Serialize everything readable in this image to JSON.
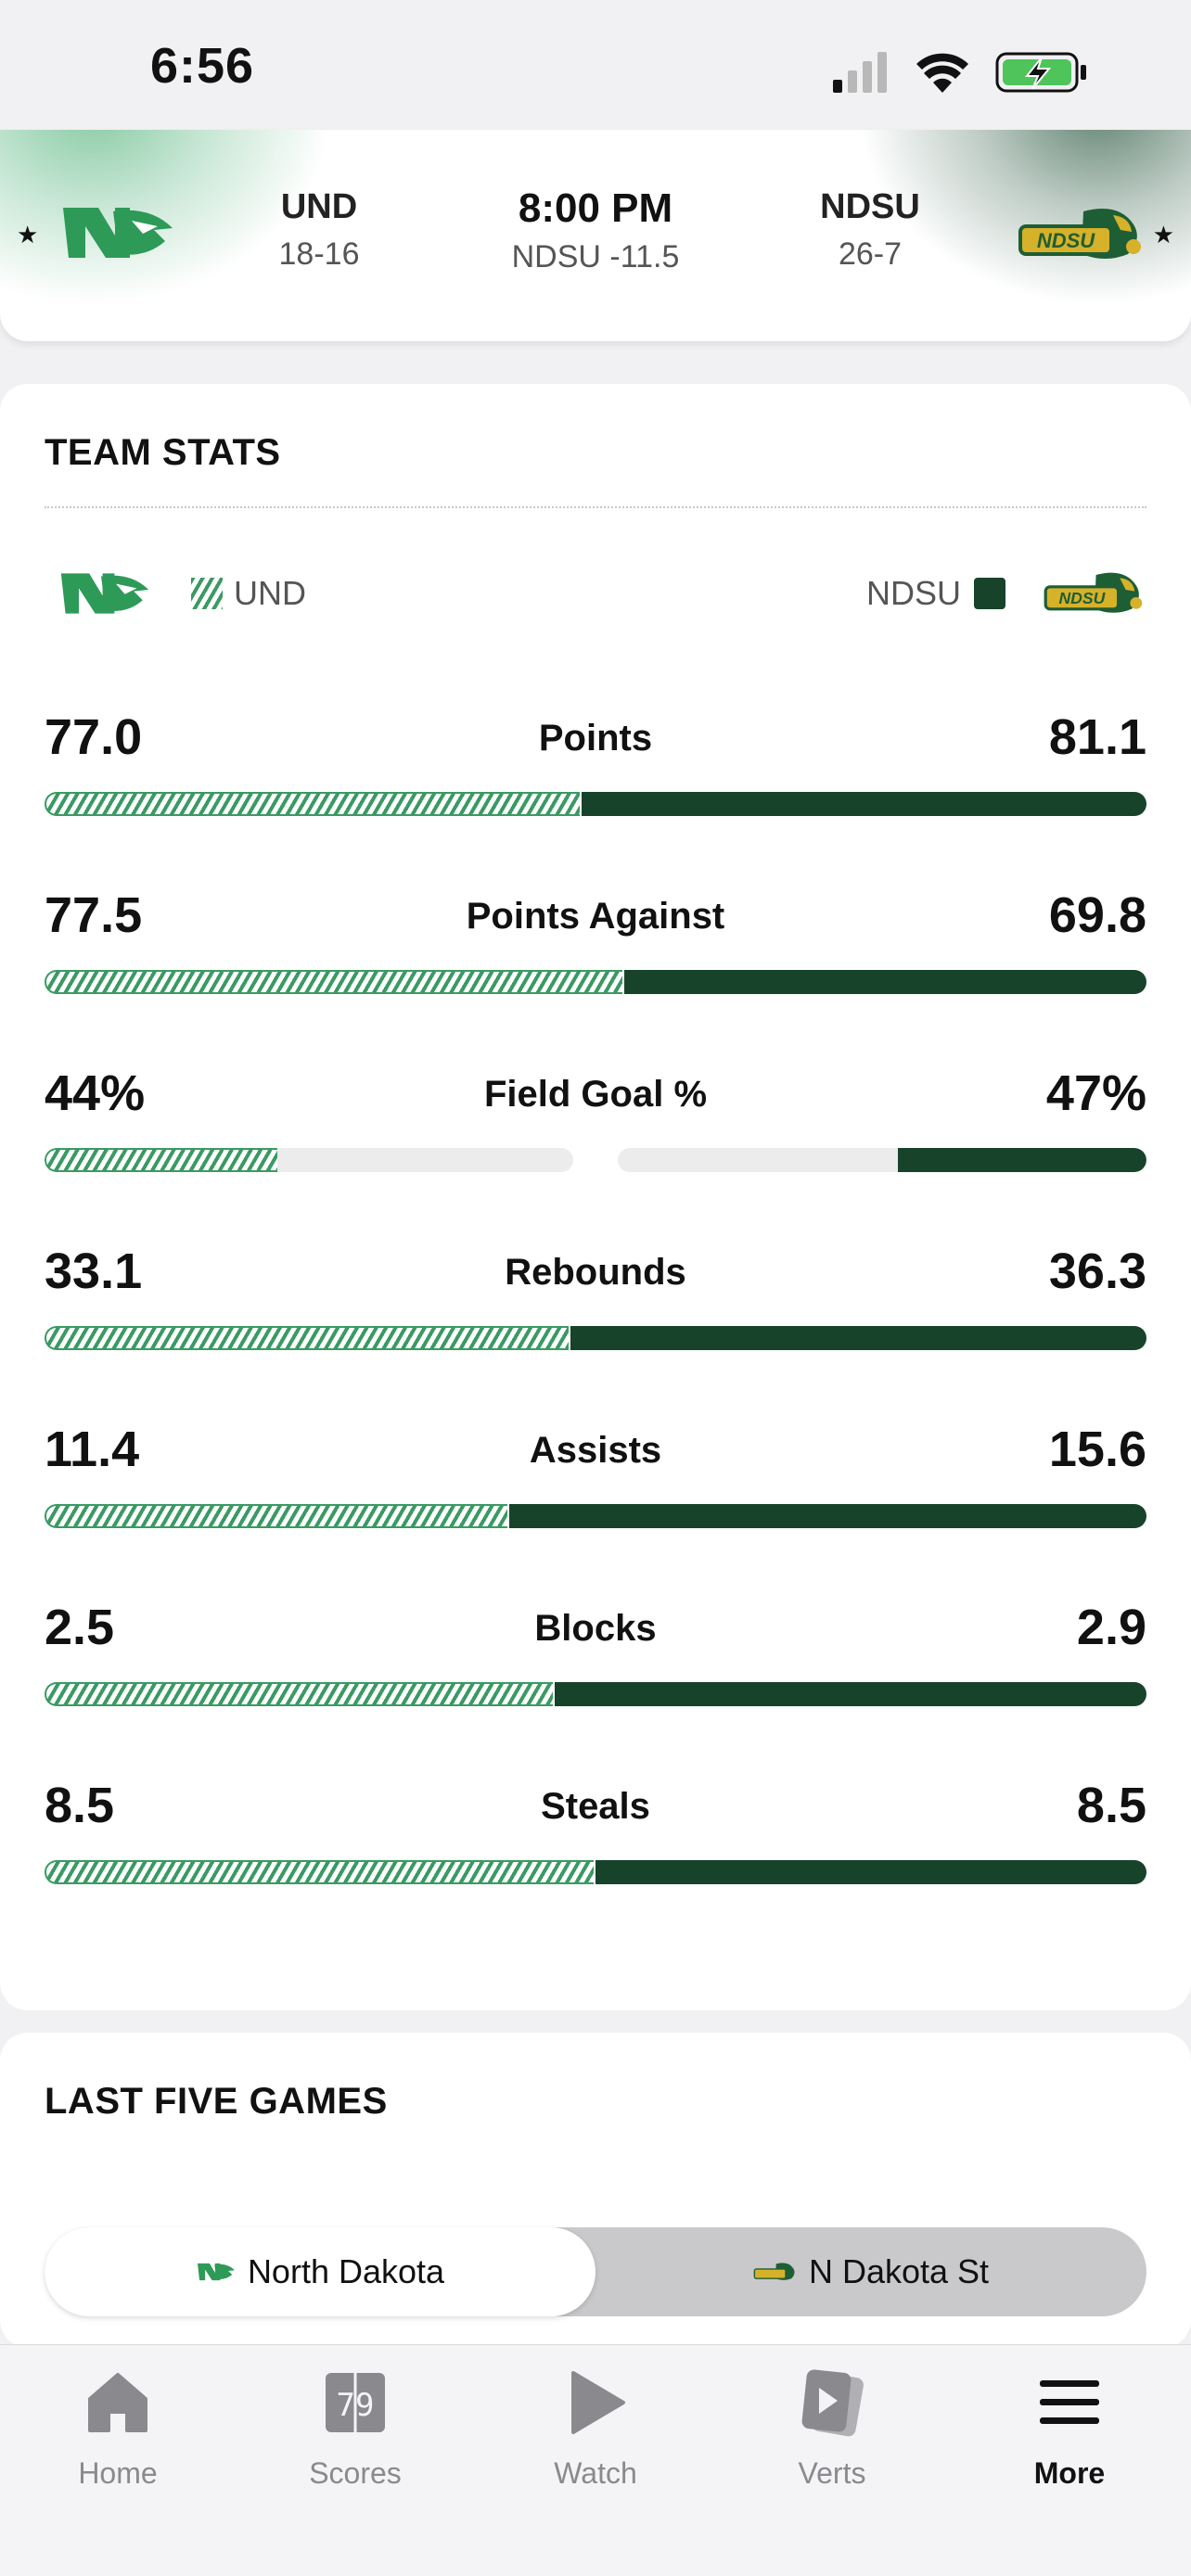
{
  "status_bar": {
    "time": "6:56"
  },
  "matchup": {
    "away": {
      "abbr": "UND",
      "record": "18-16"
    },
    "home": {
      "abbr": "NDSU",
      "record": "26-7"
    },
    "game_time": "8:00 PM",
    "line": "NDSU -11.5",
    "away_logo_text": "ND",
    "home_logo_text": "NDSU"
  },
  "team_stats": {
    "title": "TEAM STATS",
    "legend": {
      "left": "UND",
      "right": "NDSU"
    },
    "rows": [
      {
        "label": "Points",
        "und": "77.0",
        "ndsu": "81.1",
        "und_share": 0.487
      },
      {
        "label": "Points Against",
        "und": "77.5",
        "ndsu": "69.8",
        "und_share": 0.526
      },
      {
        "label": "Field Goal %",
        "und": "44%",
        "ndsu": "47%",
        "und_pct": 0.44,
        "ndsu_pct": 0.47,
        "split": true
      },
      {
        "label": "Rebounds",
        "und": "33.1",
        "ndsu": "36.3",
        "und_share": 0.477
      },
      {
        "label": "Assists",
        "und": "11.4",
        "ndsu": "15.6",
        "und_share": 0.422
      },
      {
        "label": "Blocks",
        "und": "2.5",
        "ndsu": "2.9",
        "und_share": 0.463
      },
      {
        "label": "Steals",
        "und": "8.5",
        "ndsu": "8.5",
        "und_share": 0.5
      }
    ]
  },
  "last_five": {
    "title": "LAST FIVE GAMES",
    "options": [
      "North Dakota",
      "N Dakota St"
    ]
  },
  "tab_bar": {
    "items": [
      {
        "label": "Home",
        "icon": "home-icon"
      },
      {
        "label": "Scores",
        "icon": "scores-icon",
        "icon_text": "79"
      },
      {
        "label": "Watch",
        "icon": "play-icon"
      },
      {
        "label": "Verts",
        "icon": "verts-icon"
      },
      {
        "label": "More",
        "icon": "menu-icon"
      }
    ]
  },
  "colors": {
    "und_green": "#3a9a63",
    "ndsu_green": "#17432b",
    "ndsu_gold": "#d6b12a"
  }
}
